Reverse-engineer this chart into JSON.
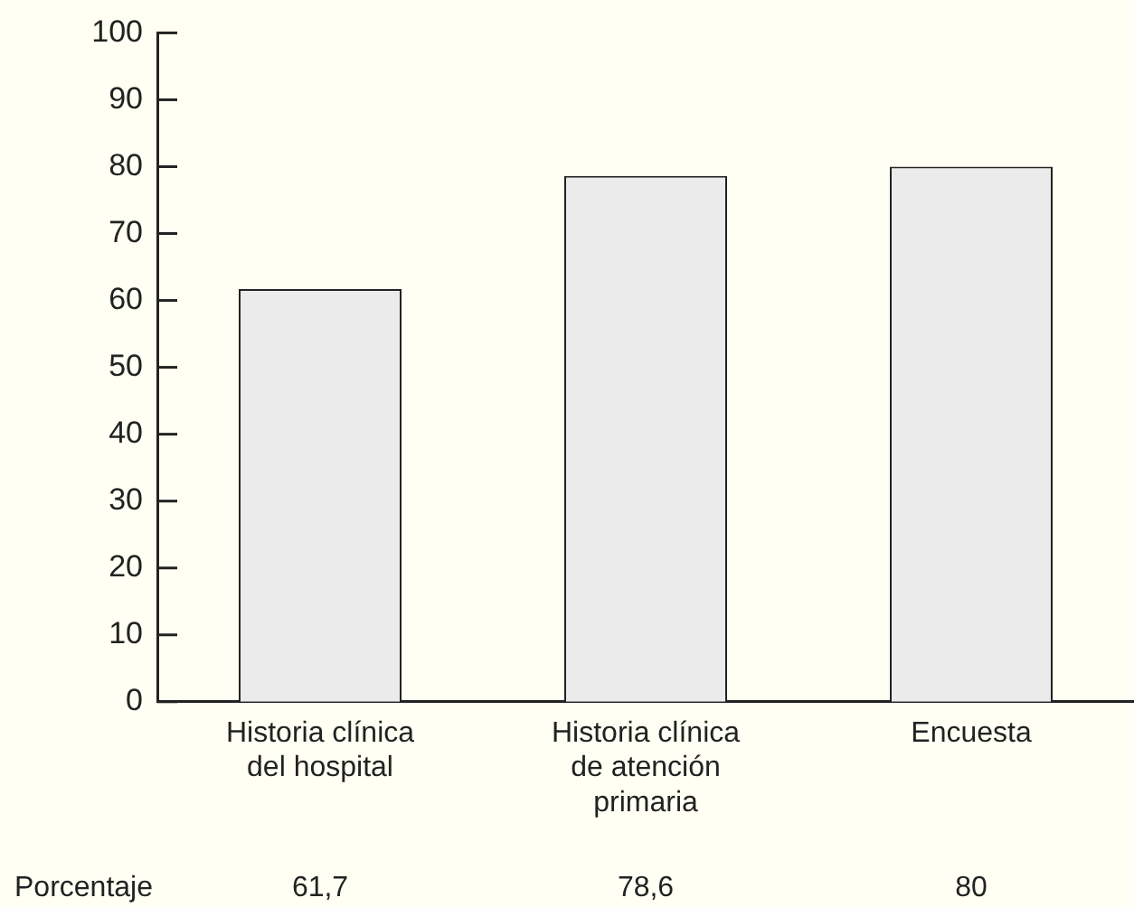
{
  "chart_data": {
    "type": "bar",
    "categories": [
      "Historia clínica\ndel hospital",
      "Historia clínica\nde atención\nprimaria",
      "Encuesta"
    ],
    "values": [
      61.7,
      78.6,
      80
    ],
    "value_labels": [
      "61,7",
      "78,6",
      "80"
    ],
    "color": "#ebebeb",
    "ylim": [
      0,
      100
    ],
    "yticks": [
      0,
      10,
      20,
      30,
      40,
      50,
      60,
      70,
      80,
      90,
      100
    ],
    "grid": false,
    "legend": false,
    "annotations": [
      "Porcentaje"
    ]
  }
}
